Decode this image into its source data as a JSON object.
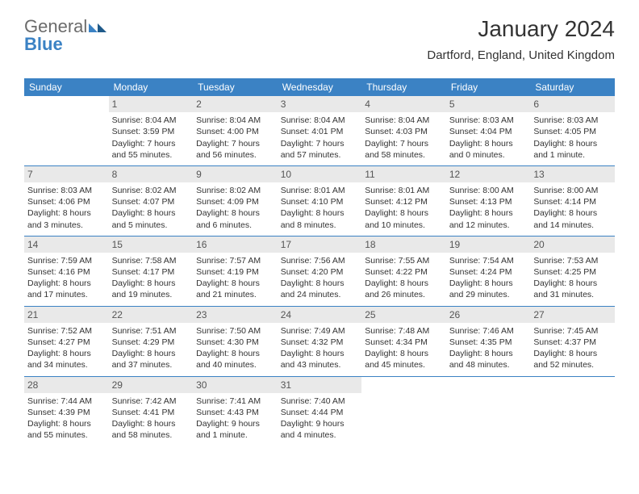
{
  "logo": {
    "general": "General",
    "blue": "Blue"
  },
  "title": "January 2024",
  "location": "Dartford, England, United Kingdom",
  "colors": {
    "header_bg": "#3b82c4",
    "header_text": "#ffffff",
    "daynum_bg": "#e9e9e9",
    "daynum_text": "#555555",
    "body_text": "#333333",
    "divider": "#3b82c4",
    "logo_general": "#6b6b6b",
    "logo_blue": "#3b82c4"
  },
  "weekdays": [
    "Sunday",
    "Monday",
    "Tuesday",
    "Wednesday",
    "Thursday",
    "Friday",
    "Saturday"
  ],
  "weeks": [
    [
      null,
      {
        "n": "1",
        "sr": "8:04 AM",
        "ss": "3:59 PM",
        "dl": "7 hours and 55 minutes."
      },
      {
        "n": "2",
        "sr": "8:04 AM",
        "ss": "4:00 PM",
        "dl": "7 hours and 56 minutes."
      },
      {
        "n": "3",
        "sr": "8:04 AM",
        "ss": "4:01 PM",
        "dl": "7 hours and 57 minutes."
      },
      {
        "n": "4",
        "sr": "8:04 AM",
        "ss": "4:03 PM",
        "dl": "7 hours and 58 minutes."
      },
      {
        "n": "5",
        "sr": "8:03 AM",
        "ss": "4:04 PM",
        "dl": "8 hours and 0 minutes."
      },
      {
        "n": "6",
        "sr": "8:03 AM",
        "ss": "4:05 PM",
        "dl": "8 hours and 1 minute."
      }
    ],
    [
      {
        "n": "7",
        "sr": "8:03 AM",
        "ss": "4:06 PM",
        "dl": "8 hours and 3 minutes."
      },
      {
        "n": "8",
        "sr": "8:02 AM",
        "ss": "4:07 PM",
        "dl": "8 hours and 5 minutes."
      },
      {
        "n": "9",
        "sr": "8:02 AM",
        "ss": "4:09 PM",
        "dl": "8 hours and 6 minutes."
      },
      {
        "n": "10",
        "sr": "8:01 AM",
        "ss": "4:10 PM",
        "dl": "8 hours and 8 minutes."
      },
      {
        "n": "11",
        "sr": "8:01 AM",
        "ss": "4:12 PM",
        "dl": "8 hours and 10 minutes."
      },
      {
        "n": "12",
        "sr": "8:00 AM",
        "ss": "4:13 PM",
        "dl": "8 hours and 12 minutes."
      },
      {
        "n": "13",
        "sr": "8:00 AM",
        "ss": "4:14 PM",
        "dl": "8 hours and 14 minutes."
      }
    ],
    [
      {
        "n": "14",
        "sr": "7:59 AM",
        "ss": "4:16 PM",
        "dl": "8 hours and 17 minutes."
      },
      {
        "n": "15",
        "sr": "7:58 AM",
        "ss": "4:17 PM",
        "dl": "8 hours and 19 minutes."
      },
      {
        "n": "16",
        "sr": "7:57 AM",
        "ss": "4:19 PM",
        "dl": "8 hours and 21 minutes."
      },
      {
        "n": "17",
        "sr": "7:56 AM",
        "ss": "4:20 PM",
        "dl": "8 hours and 24 minutes."
      },
      {
        "n": "18",
        "sr": "7:55 AM",
        "ss": "4:22 PM",
        "dl": "8 hours and 26 minutes."
      },
      {
        "n": "19",
        "sr": "7:54 AM",
        "ss": "4:24 PM",
        "dl": "8 hours and 29 minutes."
      },
      {
        "n": "20",
        "sr": "7:53 AM",
        "ss": "4:25 PM",
        "dl": "8 hours and 31 minutes."
      }
    ],
    [
      {
        "n": "21",
        "sr": "7:52 AM",
        "ss": "4:27 PM",
        "dl": "8 hours and 34 minutes."
      },
      {
        "n": "22",
        "sr": "7:51 AM",
        "ss": "4:29 PM",
        "dl": "8 hours and 37 minutes."
      },
      {
        "n": "23",
        "sr": "7:50 AM",
        "ss": "4:30 PM",
        "dl": "8 hours and 40 minutes."
      },
      {
        "n": "24",
        "sr": "7:49 AM",
        "ss": "4:32 PM",
        "dl": "8 hours and 43 minutes."
      },
      {
        "n": "25",
        "sr": "7:48 AM",
        "ss": "4:34 PM",
        "dl": "8 hours and 45 minutes."
      },
      {
        "n": "26",
        "sr": "7:46 AM",
        "ss": "4:35 PM",
        "dl": "8 hours and 48 minutes."
      },
      {
        "n": "27",
        "sr": "7:45 AM",
        "ss": "4:37 PM",
        "dl": "8 hours and 52 minutes."
      }
    ],
    [
      {
        "n": "28",
        "sr": "7:44 AM",
        "ss": "4:39 PM",
        "dl": "8 hours and 55 minutes."
      },
      {
        "n": "29",
        "sr": "7:42 AM",
        "ss": "4:41 PM",
        "dl": "8 hours and 58 minutes."
      },
      {
        "n": "30",
        "sr": "7:41 AM",
        "ss": "4:43 PM",
        "dl": "9 hours and 1 minute."
      },
      {
        "n": "31",
        "sr": "7:40 AM",
        "ss": "4:44 PM",
        "dl": "9 hours and 4 minutes."
      },
      null,
      null,
      null
    ]
  ],
  "labels": {
    "sunrise_prefix": "Sunrise: ",
    "sunset_prefix": "Sunset: ",
    "daylight_prefix": "Daylight: "
  }
}
